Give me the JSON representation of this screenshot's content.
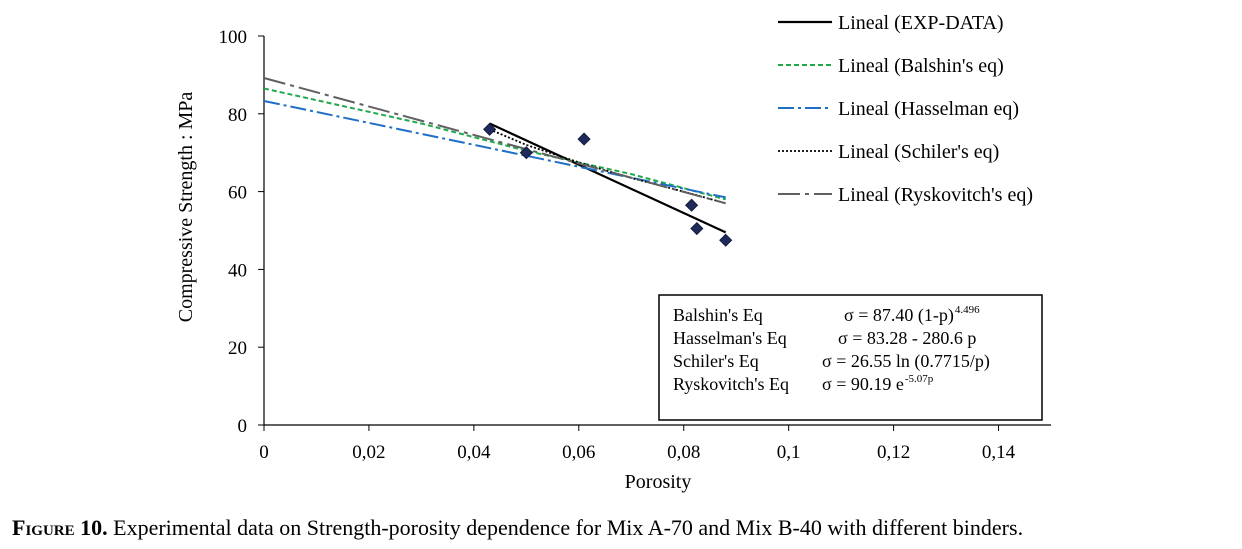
{
  "chart_data": {
    "type": "scatter",
    "title": "",
    "xlabel": "Porosity",
    "ylabel": "Compressive Strength : MPa",
    "xlim": [
      0,
      0.15
    ],
    "ylim": [
      0,
      100
    ],
    "x_ticks": [
      0,
      0.02,
      0.04,
      0.06,
      0.08,
      0.1,
      0.12,
      0.14
    ],
    "x_tick_labels": [
      "0",
      "0,02",
      "0,04",
      "0,06",
      "0,08",
      "0,1",
      "0,12",
      "0,14"
    ],
    "y_ticks": [
      0,
      20,
      40,
      60,
      80,
      100
    ],
    "y_tick_labels": [
      "0",
      "20",
      "40",
      "60",
      "80",
      "100"
    ],
    "grid": false,
    "legend_position": "top-right",
    "points": {
      "x": [
        0.043,
        0.05,
        0.061,
        0.0815,
        0.0825,
        0.088
      ],
      "y": [
        76,
        70,
        73.5,
        56.5,
        50.5,
        47.5
      ]
    },
    "series": [
      {
        "name": "Lineal (EXP-DATA)",
        "x": [
          0.043,
          0.088
        ],
        "y": [
          77.5,
          49.5
        ],
        "color": "#000000",
        "style": "solid"
      },
      {
        "name": "Lineal (Balshin's eq)",
        "x": [
          0,
          0.03,
          0.05,
          0.07,
          0.088
        ],
        "y": [
          86.5,
          77.5,
          70.5,
          64.5,
          58
        ],
        "color": "#22a84a",
        "style": "dashed"
      },
      {
        "name": "Lineal (Hasselman eq)",
        "x": [
          0,
          0.088
        ],
        "y": [
          83.3,
          58.5
        ],
        "color": "#1f6fc6",
        "style": "dash-dot"
      },
      {
        "name": "Lineal (Schiler's eq)",
        "x": [
          0.043,
          0.05,
          0.06,
          0.07,
          0.08,
          0.088
        ],
        "y": [
          76,
          72,
          67.5,
          63.5,
          60,
          57
        ],
        "color": "#000000",
        "style": "dotted"
      },
      {
        "name": "Lineal (Ryskovitch's eq)",
        "x": [
          0,
          0.088
        ],
        "y": [
          89.2,
          57
        ],
        "color": "#606060",
        "style": "long-dash-dot"
      }
    ],
    "equations": [
      {
        "label": "Balshin's Eq",
        "formula": "σ = 87.40 (1-p)",
        "sup": "4.496",
        "tail": ""
      },
      {
        "label": "Hasselman's Eq",
        "formula": "σ = 83.28 - 280.6 p",
        "sup": "",
        "tail": ""
      },
      {
        "label": "Schiler's Eq",
        "formula": "σ = 26.55 ln (0.7715/p)",
        "sup": "",
        "tail": ""
      },
      {
        "label": "Ryskovitch's Eq",
        "formula": "σ = 90.19 e",
        "sup": "-5.07p",
        "tail": ""
      }
    ]
  },
  "caption": {
    "label": "Figure 10.",
    "text": " Experimental data on Strength-porosity dependence for Mix A-70 and Mix B-40 with different binders."
  }
}
